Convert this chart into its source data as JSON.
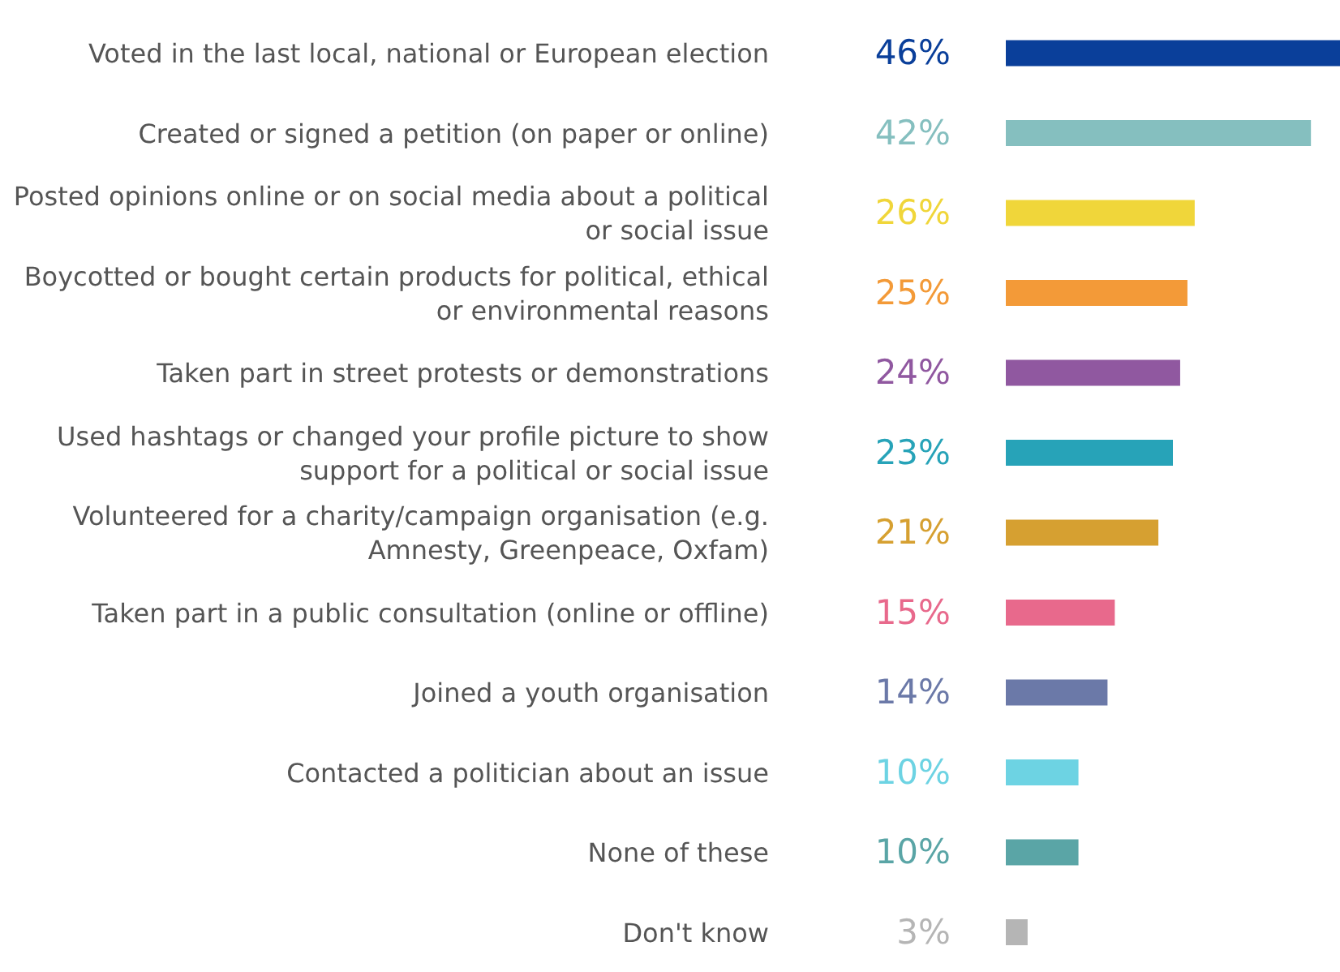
{
  "chart_data": {
    "type": "bar",
    "orientation": "horizontal",
    "categories": [
      "Voted in the last local, national or European election",
      "Created or signed a petition (on paper or online)",
      "Posted opinions online or on social media about a political or social issue",
      "Boycotted or bought certain products for political, ethical or environmental reasons",
      "Taken part in street protests or demonstrations",
      "Used hashtags or changed your profile picture to show support for a political or social issue",
      "Volunteered for a charity/campaign organisation (e.g. Amnesty, Greenpeace, Oxfam)",
      "Taken part in a public consultation (online or offline)",
      "Joined a youth organisation",
      "Contacted a politician about an issue",
      "None of these",
      "Don't know"
    ],
    "values": [
      46,
      42,
      26,
      25,
      24,
      23,
      21,
      15,
      14,
      10,
      10,
      3
    ],
    "value_labels": [
      "46%",
      "42%",
      "26%",
      "25%",
      "24%",
      "23%",
      "21%",
      "15%",
      "14%",
      "10%",
      "10%",
      "3%"
    ],
    "colors": [
      "#0a3f9a",
      "#85bfbf",
      "#f0d63a",
      "#f39a38",
      "#9058a0",
      "#27a3b8",
      "#d6a031",
      "#e8698c",
      "#6b79a8",
      "#6dd3e3",
      "#5aa5a6",
      "#b5b5b5"
    ]
  }
}
